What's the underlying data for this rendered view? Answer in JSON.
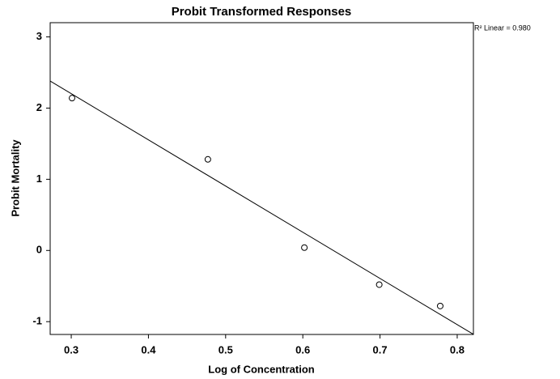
{
  "chart_data": {
    "type": "scatter",
    "title": "Probit Transformed Responses",
    "x_label": "Log of Concentration",
    "y_label": "Probit Mortality",
    "annotation": "R² Linear = 0.980",
    "x": [
      0.301,
      0.477,
      0.602,
      0.699,
      0.778
    ],
    "values": [
      2.14,
      1.28,
      0.04,
      -0.48,
      -0.78
    ],
    "color": "#000000",
    "fit": {
      "slope": -6.49,
      "intercept": 4.15
    },
    "xlim": [
      0.2727,
      0.821
    ],
    "xticks": [
      0.3,
      0.4,
      0.5,
      0.6,
      0.7,
      0.8
    ],
    "ylim": [
      -1.18,
      3.2
    ],
    "yticks": [
      -1,
      0,
      1,
      2,
      3
    ]
  }
}
